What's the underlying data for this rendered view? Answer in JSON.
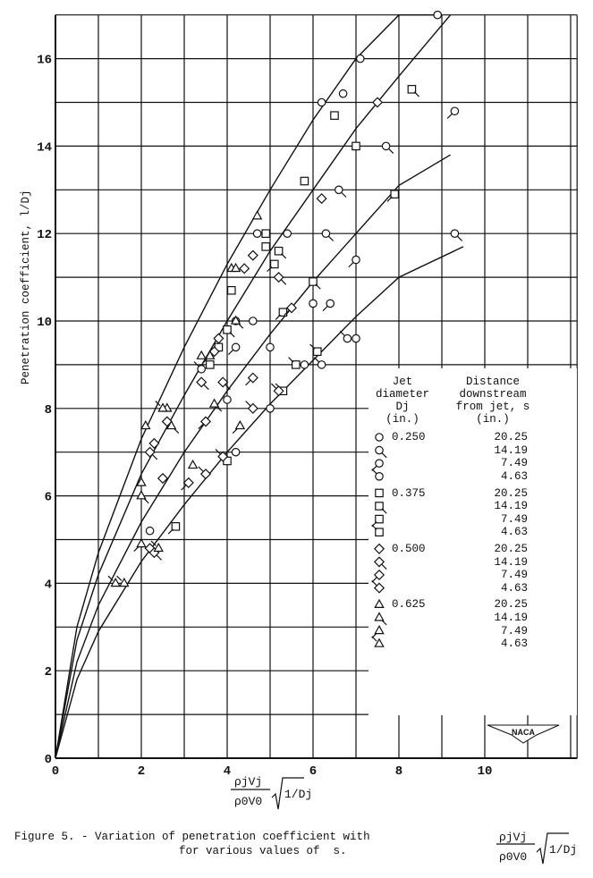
{
  "chart_data": {
    "type": "scatter",
    "title": "Figure 5. - Variation of penetration coefficient with ρjVj/ρ0V0 √(1/Dj) for various values of s.",
    "xlabel": "ρjVj/ρ0V0 √(1/Dj)",
    "ylabel": "Penetration coefficient, l/Dj",
    "xlim": [
      0,
      12
    ],
    "ylim": [
      0,
      17
    ],
    "x_ticks": [
      0,
      2,
      4,
      6,
      8,
      10
    ],
    "y_ticks": [
      0,
      2,
      4,
      6,
      8,
      10,
      12,
      14,
      16
    ],
    "grid": true,
    "legend_position": "inside lower right",
    "legend_headers": {
      "diameter": "Jet diameter Dj (in.)",
      "distance": "Distance downstream from jet, s (in.)"
    },
    "legend": [
      {
        "symbol": "circle",
        "diameter": "0.250",
        "distance": "20.25"
      },
      {
        "symbol": "circle-flag-se",
        "diameter": "",
        "distance": "14.19"
      },
      {
        "symbol": "circle-flag-sw",
        "diameter": "",
        "distance": "7.49"
      },
      {
        "symbol": "circle-flag-nw",
        "diameter": "",
        "distance": "4.63"
      },
      {
        "symbol": "square",
        "diameter": "0.375",
        "distance": "20.25"
      },
      {
        "symbol": "square-flag-se",
        "diameter": "",
        "distance": "14.19"
      },
      {
        "symbol": "square-flag-sw",
        "diameter": "",
        "distance": "7.49"
      },
      {
        "symbol": "square-flag-nw",
        "diameter": "",
        "distance": "4.63"
      },
      {
        "symbol": "diamond",
        "diameter": "0.500",
        "distance": "20.25"
      },
      {
        "symbol": "diamond-flag-se",
        "diameter": "",
        "distance": "14.19"
      },
      {
        "symbol": "diamond-flag-sw",
        "diameter": "",
        "distance": "7.49"
      },
      {
        "symbol": "diamond-flag-nw",
        "diameter": "",
        "distance": "4.63"
      },
      {
        "symbol": "triangle",
        "diameter": "0.625",
        "distance": "20.25"
      },
      {
        "symbol": "triangle-flag-se",
        "diameter": "",
        "distance": "14.19"
      },
      {
        "symbol": "triangle-flag-sw",
        "diameter": "",
        "distance": "7.49"
      },
      {
        "symbol": "triangle-flag-nw",
        "diameter": "",
        "distance": "4.63"
      }
    ],
    "curves": [
      {
        "name": "s = 4.63",
        "x": [
          0,
          0.5,
          1,
          2,
          3,
          4,
          5,
          6,
          7,
          8,
          8.9
        ],
        "y": [
          0,
          3.0,
          4.7,
          7.3,
          9.4,
          11.3,
          13.0,
          14.6,
          16.0,
          17.4,
          17.0
        ]
      },
      {
        "name": "s = 7.49",
        "x": [
          0,
          0.5,
          1,
          2,
          3,
          4,
          5,
          6,
          7,
          8,
          9.2
        ],
        "y": [
          0,
          2.7,
          4.2,
          6.5,
          8.3,
          10.0,
          11.6,
          13.0,
          14.4,
          15.6,
          17.3
        ]
      },
      {
        "name": "s = 14.19",
        "x": [
          0,
          0.5,
          1,
          2,
          3,
          4,
          5,
          6,
          7,
          8,
          9.2
        ],
        "y": [
          0,
          2.2,
          3.5,
          5.4,
          7.0,
          8.4,
          9.7,
          10.9,
          12.0,
          13.1,
          13.8
        ]
      },
      {
        "name": "s = 20.25",
        "x": [
          0,
          0.5,
          1,
          2,
          3,
          4,
          5,
          6,
          7,
          8,
          9.5
        ],
        "y": [
          0,
          1.8,
          2.9,
          4.5,
          5.8,
          7.0,
          8.1,
          9.1,
          10.1,
          11.0,
          11.7
        ]
      }
    ],
    "points": [
      {
        "symbol": "circle",
        "x": 8.9,
        "y": 17.0
      },
      {
        "symbol": "circle",
        "x": 7.1,
        "y": 16.0
      },
      {
        "symbol": "circle",
        "x": 6.7,
        "y": 15.2
      },
      {
        "symbol": "circle",
        "x": 6.2,
        "y": 15.0
      },
      {
        "symbol": "circle",
        "x": 4.7,
        "y": 12.0
      },
      {
        "symbol": "circle",
        "x": 5.4,
        "y": 12.0
      },
      {
        "symbol": "circle",
        "x": 4.6,
        "y": 10.0
      },
      {
        "symbol": "circle",
        "x": 5.0,
        "y": 9.4
      },
      {
        "symbol": "circle",
        "x": 6.0,
        "y": 10.4
      },
      {
        "symbol": "circle",
        "x": 5.8,
        "y": 9.0
      },
      {
        "symbol": "circle",
        "x": 7.0,
        "y": 9.6
      },
      {
        "symbol": "circle",
        "x": 5.0,
        "y": 8.0
      },
      {
        "symbol": "circle",
        "x": 4.2,
        "y": 7.0
      },
      {
        "symbol": "circle",
        "x": 4.0,
        "y": 8.2
      },
      {
        "symbol": "circle",
        "x": 2.2,
        "y": 5.2
      },
      {
        "symbol": "circle-flag-se",
        "x": 7.7,
        "y": 14.0
      },
      {
        "symbol": "circle-flag-se",
        "x": 6.6,
        "y": 13.0
      },
      {
        "symbol": "circle-flag-se",
        "x": 6.3,
        "y": 12.0
      },
      {
        "symbol": "circle-flag-se",
        "x": 9.3,
        "y": 12.0
      },
      {
        "symbol": "circle-flag-se",
        "x": 4.2,
        "y": 10.0
      },
      {
        "symbol": "circle-flag-sw",
        "x": 9.3,
        "y": 14.8
      },
      {
        "symbol": "circle-flag-sw",
        "x": 7.0,
        "y": 11.4
      },
      {
        "symbol": "circle-flag-sw",
        "x": 4.2,
        "y": 9.4
      },
      {
        "symbol": "circle-flag-sw",
        "x": 6.4,
        "y": 10.4
      },
      {
        "symbol": "circle-flag-nw",
        "x": 6.8,
        "y": 9.6
      },
      {
        "symbol": "circle-flag-nw",
        "x": 6.2,
        "y": 9.0
      },
      {
        "symbol": "circle-flag-nw",
        "x": 3.4,
        "y": 8.9
      },
      {
        "symbol": "square",
        "x": 5.8,
        "y": 13.2
      },
      {
        "symbol": "square",
        "x": 4.9,
        "y": 12.0
      },
      {
        "symbol": "square",
        "x": 4.9,
        "y": 11.7
      },
      {
        "symbol": "square",
        "x": 4.1,
        "y": 10.7
      },
      {
        "symbol": "square",
        "x": 3.8,
        "y": 9.4
      },
      {
        "symbol": "square",
        "x": 3.6,
        "y": 9.0
      },
      {
        "symbol": "square",
        "x": 6.5,
        "y": 14.7
      },
      {
        "symbol": "square",
        "x": 7.0,
        "y": 14.0
      },
      {
        "symbol": "square-flag-se",
        "x": 8.3,
        "y": 15.3
      },
      {
        "symbol": "square-flag-se",
        "x": 5.2,
        "y": 11.6
      },
      {
        "symbol": "square-flag-se",
        "x": 4.0,
        "y": 9.8
      },
      {
        "symbol": "square-flag-se",
        "x": 6.0,
        "y": 10.9
      },
      {
        "symbol": "square-flag-sw",
        "x": 7.9,
        "y": 12.9
      },
      {
        "symbol": "square-flag-sw",
        "x": 5.1,
        "y": 11.3
      },
      {
        "symbol": "square-flag-sw",
        "x": 5.3,
        "y": 10.2
      },
      {
        "symbol": "square-flag-sw",
        "x": 2.8,
        "y": 5.3
      },
      {
        "symbol": "square-flag-nw",
        "x": 6.1,
        "y": 9.3
      },
      {
        "symbol": "square-flag-nw",
        "x": 5.6,
        "y": 9.0
      },
      {
        "symbol": "square-flag-nw",
        "x": 4.0,
        "y": 6.8
      },
      {
        "symbol": "square-flag-nw",
        "x": 5.3,
        "y": 8.4
      },
      {
        "symbol": "diamond",
        "x": 7.5,
        "y": 15.0
      },
      {
        "symbol": "diamond",
        "x": 6.2,
        "y": 12.8
      },
      {
        "symbol": "diamond",
        "x": 4.6,
        "y": 11.5
      },
      {
        "symbol": "diamond",
        "x": 4.4,
        "y": 11.2
      },
      {
        "symbol": "diamond",
        "x": 3.8,
        "y": 9.6
      },
      {
        "symbol": "diamond",
        "x": 3.7,
        "y": 9.3
      },
      {
        "symbol": "diamond",
        "x": 2.6,
        "y": 7.7
      },
      {
        "symbol": "diamond",
        "x": 2.3,
        "y": 7.2
      },
      {
        "symbol": "diamond",
        "x": 2.5,
        "y": 6.4
      },
      {
        "symbol": "diamond",
        "x": 2.2,
        "y": 4.8
      },
      {
        "symbol": "diamond-flag-se",
        "x": 5.2,
        "y": 11.0
      },
      {
        "symbol": "diamond-flag-se",
        "x": 3.4,
        "y": 8.6
      },
      {
        "symbol": "diamond-flag-se",
        "x": 3.9,
        "y": 8.6
      },
      {
        "symbol": "diamond-flag-se",
        "x": 2.2,
        "y": 7.0
      },
      {
        "symbol": "diamond-flag-se",
        "x": 2.3,
        "y": 4.7
      },
      {
        "symbol": "diamond-flag-sw",
        "x": 5.5,
        "y": 10.3
      },
      {
        "symbol": "diamond-flag-sw",
        "x": 4.6,
        "y": 8.7
      },
      {
        "symbol": "diamond-flag-sw",
        "x": 3.5,
        "y": 7.7
      },
      {
        "symbol": "diamond-flag-sw",
        "x": 3.1,
        "y": 6.3
      },
      {
        "symbol": "diamond-flag-nw",
        "x": 4.6,
        "y": 8.0
      },
      {
        "symbol": "diamond-flag-nw",
        "x": 5.2,
        "y": 8.4
      },
      {
        "symbol": "diamond-flag-nw",
        "x": 3.9,
        "y": 6.9
      },
      {
        "symbol": "diamond-flag-nw",
        "x": 3.5,
        "y": 6.5
      },
      {
        "symbol": "triangle",
        "x": 4.7,
        "y": 12.4
      },
      {
        "symbol": "triangle",
        "x": 4.1,
        "y": 11.2
      },
      {
        "symbol": "triangle",
        "x": 4.2,
        "y": 11.2
      },
      {
        "symbol": "triangle",
        "x": 4.2,
        "y": 10.0
      },
      {
        "symbol": "triangle",
        "x": 3.4,
        "y": 9.2
      },
      {
        "symbol": "triangle",
        "x": 2.1,
        "y": 7.6
      },
      {
        "symbol": "triangle",
        "x": 2.6,
        "y": 8.0
      },
      {
        "symbol": "triangle",
        "x": 3.2,
        "y": 6.7
      },
      {
        "symbol": "triangle",
        "x": 2.0,
        "y": 6.3
      },
      {
        "symbol": "triangle-flag-se",
        "x": 2.7,
        "y": 7.6
      },
      {
        "symbol": "triangle-flag-se",
        "x": 3.7,
        "y": 8.1
      },
      {
        "symbol": "triangle-flag-se",
        "x": 2.0,
        "y": 6.0
      },
      {
        "symbol": "triangle-flag-sw",
        "x": 3.6,
        "y": 9.2
      },
      {
        "symbol": "triangle-flag-sw",
        "x": 4.3,
        "y": 7.6
      },
      {
        "symbol": "triangle-flag-sw",
        "x": 2.0,
        "y": 4.9
      },
      {
        "symbol": "triangle-flag-nw",
        "x": 1.4,
        "y": 4.0
      },
      {
        "symbol": "triangle-flag-nw",
        "x": 1.6,
        "y": 4.0
      },
      {
        "symbol": "triangle-flag-nw",
        "x": 2.4,
        "y": 4.8
      },
      {
        "symbol": "triangle-flag-nw",
        "x": 2.5,
        "y": 8.0
      }
    ]
  },
  "axis": {
    "y_title": "Penetration coefficient, l/Dj",
    "x_numer": "ρjVj",
    "x_denom": "ρ0V0",
    "x_root": "1/Dj"
  },
  "legend_text": {
    "h1_line1": "Jet",
    "h1_line2": "diameter",
    "h1_line3": "Dj",
    "h1_line4": "(in.)",
    "h2_line1": "Distance",
    "h2_line2": "downstream",
    "h2_line3": "from jet, s",
    "h2_line4": "(in.)"
  },
  "caption": {
    "line1": "Figure 5. - Variation of penetration coefficient with",
    "line2": "for various values of  s."
  },
  "logo": {
    "text": "NACA"
  }
}
